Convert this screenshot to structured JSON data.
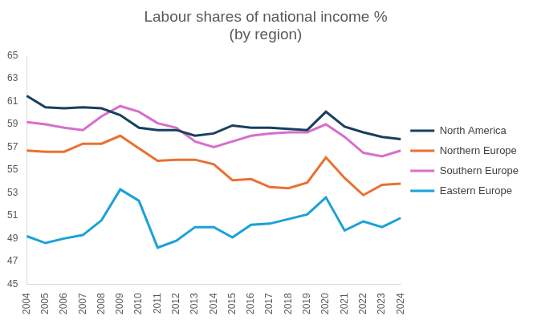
{
  "chart_data": {
    "type": "line",
    "title": "Labour shares of national income %\n(by region)",
    "categories": [
      "2004",
      "2005",
      "2006",
      "2007",
      "2008",
      "2009",
      "2010",
      "2011",
      "2012",
      "2013",
      "2014",
      "2015",
      "2016",
      "2017",
      "2018",
      "2019",
      "2020",
      "2021",
      "2022",
      "2023",
      "2024"
    ],
    "series": [
      {
        "name": "North America",
        "color": "#17405e",
        "values": [
          61.5,
          60.5,
          60.4,
          60.5,
          60.4,
          59.8,
          58.7,
          58.5,
          58.5,
          58.0,
          58.2,
          58.9,
          58.7,
          58.7,
          58.6,
          58.5,
          60.1,
          58.8,
          58.3,
          57.9,
          57.7
        ]
      },
      {
        "name": "Northern Europe",
        "color": "#e97132",
        "values": [
          56.7,
          56.6,
          56.6,
          57.3,
          57.3,
          58.0,
          56.9,
          55.8,
          55.9,
          55.9,
          55.5,
          54.1,
          54.2,
          53.5,
          53.4,
          53.9,
          56.1,
          54.3,
          52.8,
          53.7,
          53.8
        ]
      },
      {
        "name": "Southern Europe",
        "color": "#d86ecc",
        "values": [
          59.2,
          59.0,
          58.7,
          58.5,
          59.7,
          60.6,
          60.1,
          59.1,
          58.7,
          57.5,
          57.0,
          57.5,
          58.0,
          58.2,
          58.3,
          58.3,
          59.0,
          57.9,
          56.5,
          56.2,
          56.7
        ]
      },
      {
        "name": "Eastern Europe",
        "color": "#1ba1d8",
        "values": [
          49.2,
          48.6,
          49.0,
          49.3,
          50.6,
          53.3,
          52.3,
          48.2,
          48.8,
          50.0,
          50.0,
          49.1,
          50.2,
          50.3,
          50.7,
          51.1,
          52.6,
          49.7,
          50.5,
          50.0,
          50.8
        ]
      }
    ],
    "ylim": [
      45,
      65
    ],
    "yticks": [
      45,
      47,
      49,
      51,
      53,
      55,
      57,
      59,
      61,
      63,
      65
    ],
    "grid": false,
    "legend": "right"
  }
}
